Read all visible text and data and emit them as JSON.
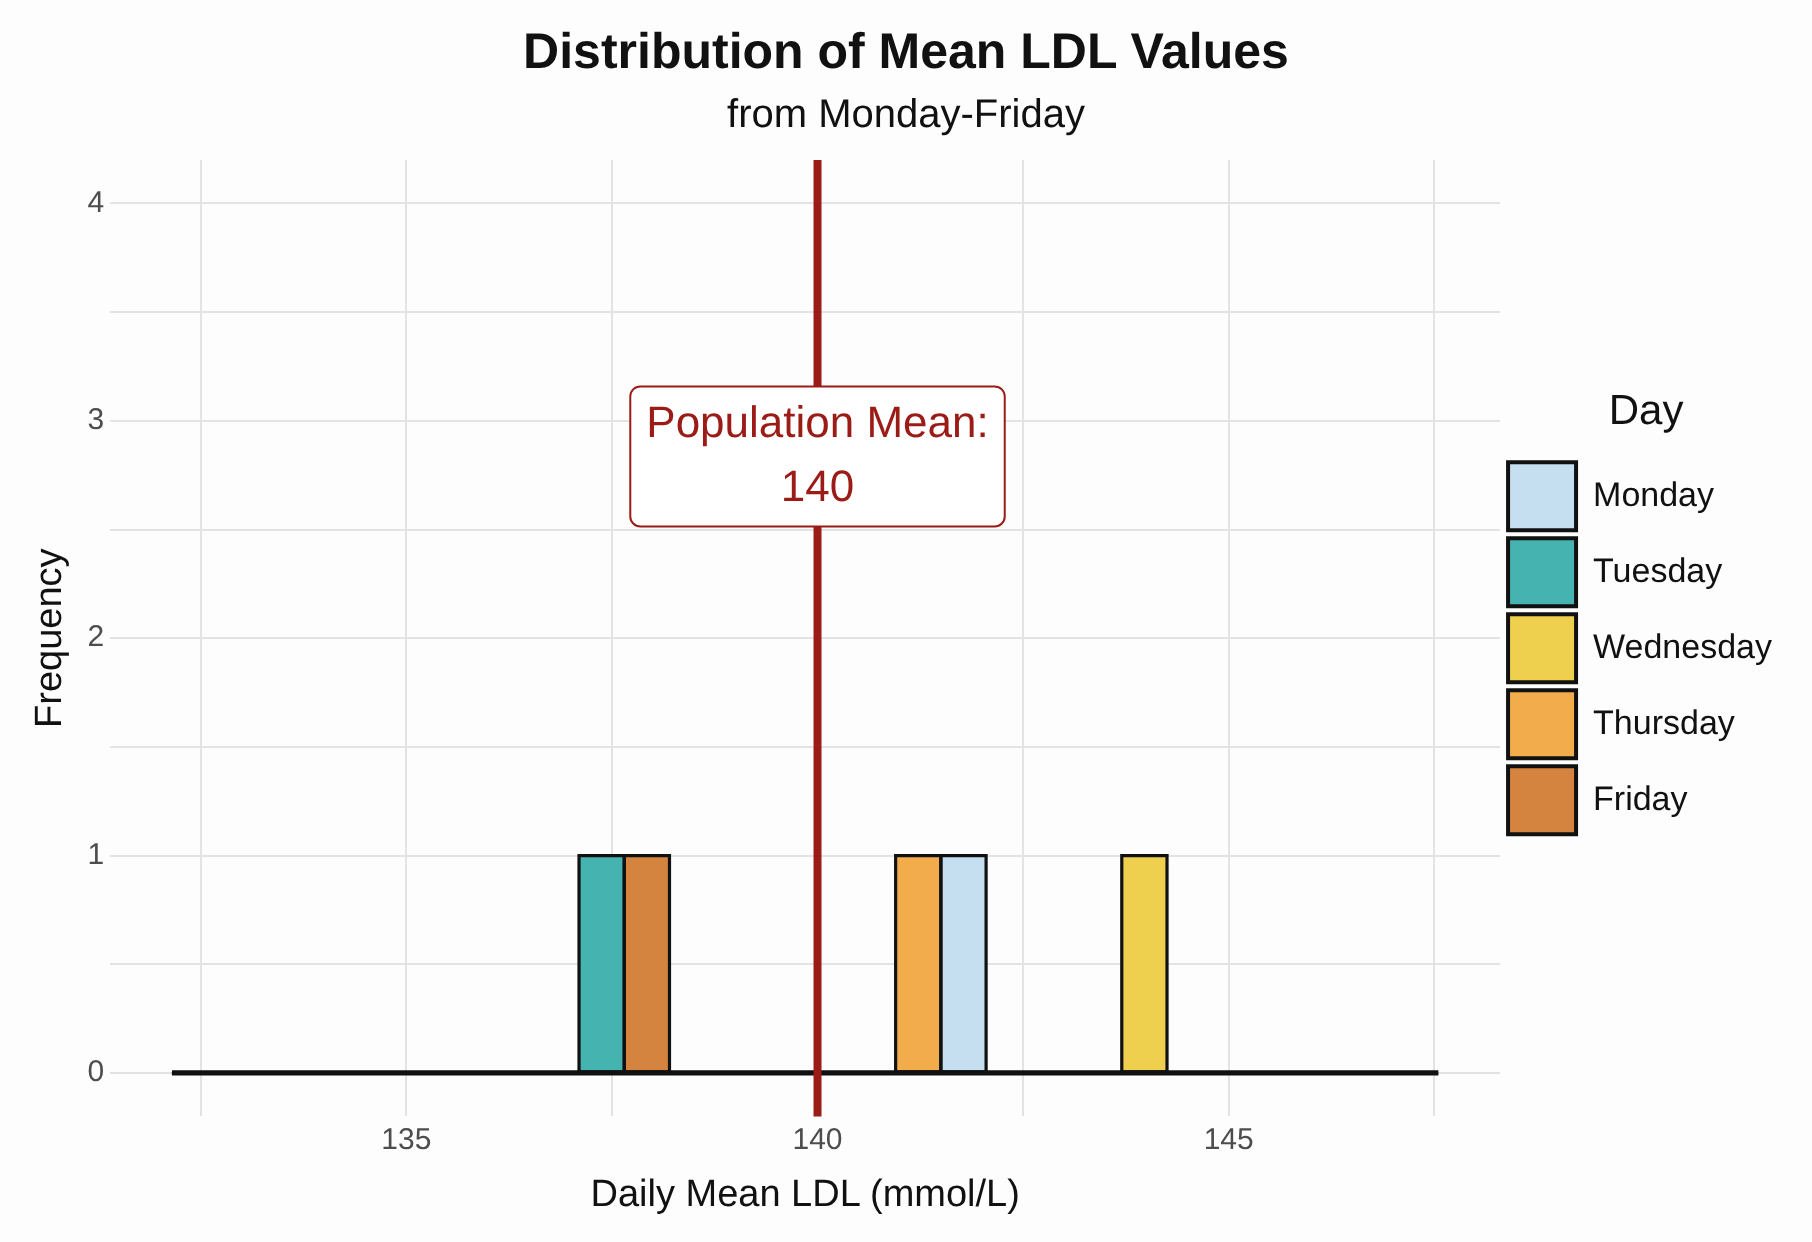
{
  "chart_data": {
    "type": "histogram",
    "title": "Distribution of Mean LDL Values",
    "subtitle": "from Monday-Friday",
    "xlabel": "Daily Mean LDL (mmol/L)",
    "ylabel": "Frequency",
    "legend_title": "Day",
    "bins": [
      132.15,
      132.7,
      133.25,
      133.8,
      134.35,
      134.9,
      135.45,
      136,
      136.55,
      137.1,
      137.65,
      138.2,
      138.75,
      139.3,
      139.85,
      140.4,
      140.95,
      141.5,
      142.05,
      142.6,
      143.15,
      143.7,
      144.25,
      144.8,
      145.35,
      145.9,
      146.45,
      147,
      147.55
    ],
    "series": [
      {
        "name": "Monday",
        "color": "#c6dff0",
        "values": [
          0,
          0,
          0,
          0,
          0,
          0,
          0,
          0,
          0,
          0,
          0,
          0,
          0,
          0,
          0,
          0,
          0,
          1,
          0,
          0,
          0,
          0,
          0,
          0,
          0,
          0,
          0,
          0
        ]
      },
      {
        "name": "Tuesday",
        "color": "#45b3b0",
        "values": [
          0,
          0,
          0,
          0,
          0,
          0,
          0,
          0,
          0,
          1,
          0,
          0,
          0,
          0,
          0,
          0,
          0,
          0,
          0,
          0,
          0,
          0,
          0,
          0,
          0,
          0,
          0,
          0
        ]
      },
      {
        "name": "Wednesday",
        "color": "#efd04e",
        "values": [
          0,
          0,
          0,
          0,
          0,
          0,
          0,
          0,
          0,
          0,
          0,
          0,
          0,
          0,
          0,
          0,
          0,
          0,
          0,
          0,
          0,
          1,
          0,
          0,
          0,
          0,
          0,
          0
        ]
      },
      {
        "name": "Thursday",
        "color": "#f2ac4c",
        "values": [
          0,
          0,
          0,
          0,
          0,
          0,
          0,
          0,
          0,
          0,
          0,
          0,
          0,
          0,
          0,
          0,
          1,
          0,
          0,
          0,
          0,
          0,
          0,
          0,
          0,
          0,
          0,
          0
        ]
      },
      {
        "name": "Friday",
        "color": "#d5843f",
        "values": [
          0,
          0,
          0,
          0,
          0,
          0,
          0,
          0,
          0,
          0,
          1,
          0,
          0,
          0,
          0,
          0,
          0,
          0,
          0,
          0,
          0,
          0,
          0,
          0,
          0,
          0,
          0,
          0
        ]
      }
    ],
    "xlim": [
      131.4,
      148.3
    ],
    "xticks": [
      {
        "value": 132.5,
        "label": null
      },
      135,
      {
        "value": 137.5,
        "label": null
      },
      140,
      {
        "value": 142.5,
        "label": null
      },
      145,
      {
        "value": 147.5,
        "label": null
      }
    ],
    "ylim": [
      -0.2,
      4.2
    ],
    "yticks": [
      0,
      {
        "value": 0.5,
        "label": null
      },
      1,
      {
        "value": 1.5,
        "label": null
      },
      2,
      {
        "value": 2.5,
        "label": null
      },
      3,
      {
        "value": 3.5,
        "label": null
      },
      4
    ],
    "ref_lines": [
      {
        "axis": "x",
        "value": 140,
        "label": "Population Mean:\n140",
        "color": "#9b1b17"
      }
    ],
    "grid": true,
    "legend": "right"
  }
}
